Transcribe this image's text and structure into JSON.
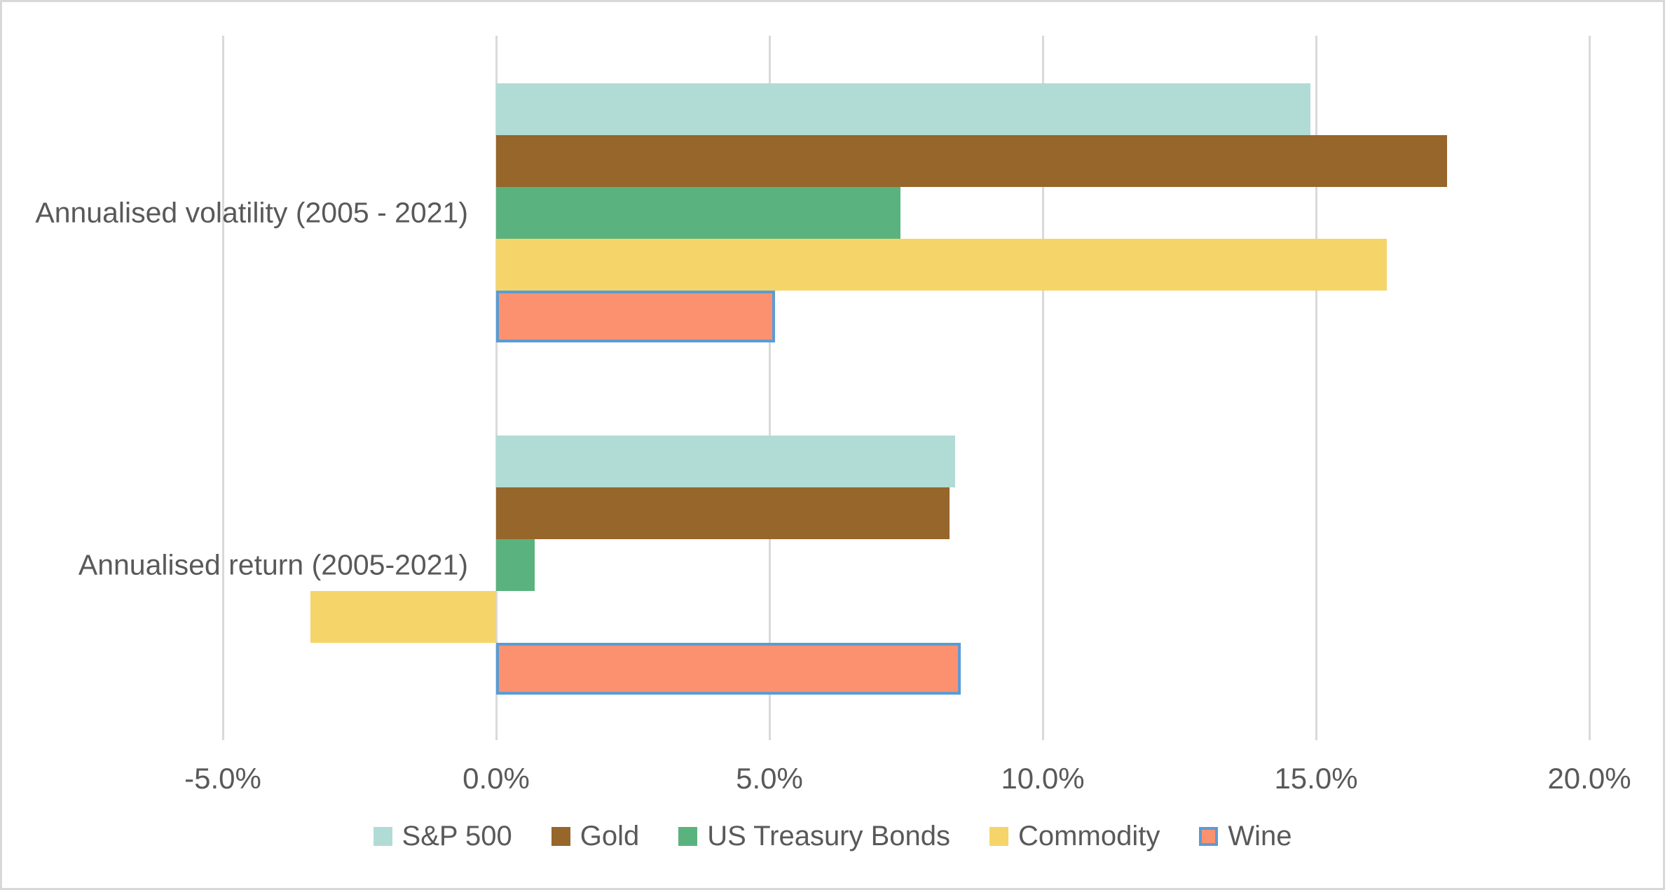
{
  "chart_data": {
    "type": "bar",
    "orientation": "horizontal",
    "title": "",
    "categories": [
      "Annualised volatility (2005 - 2021)",
      "Annualised return (2005-2021)"
    ],
    "series": [
      {
        "name": "S&P 500",
        "values": [
          14.9,
          8.4
        ],
        "color": "#b0dcd5"
      },
      {
        "name": "Gold",
        "values": [
          17.4,
          8.3
        ],
        "color": "#96662b"
      },
      {
        "name": "US Treasury Bonds",
        "values": [
          7.4,
          0.7
        ],
        "color": "#5ab37e"
      },
      {
        "name": "Commodity",
        "values": [
          16.3,
          -3.4
        ],
        "color": "#f5d469"
      },
      {
        "name": "Wine",
        "values": [
          5.1,
          8.5
        ],
        "color": "#fc9170",
        "border_color": "#5b9bd5"
      }
    ],
    "x_ticks": [
      "-5.0%",
      "0.0%",
      "5.0%",
      "10.0%",
      "15.0%",
      "20.0%"
    ],
    "x_tick_values": [
      -5,
      0,
      5,
      10,
      15,
      20
    ],
    "xlim": [
      -5,
      20
    ],
    "unit": "percent",
    "grid": true,
    "legend_position": "bottom",
    "colors": {
      "gridline": "#d9d9d9",
      "axis_text": "#595959",
      "frame_border": "#d8d8d8",
      "background": "#ffffff",
      "wine_bar_outline": "#5b9bd5"
    }
  }
}
